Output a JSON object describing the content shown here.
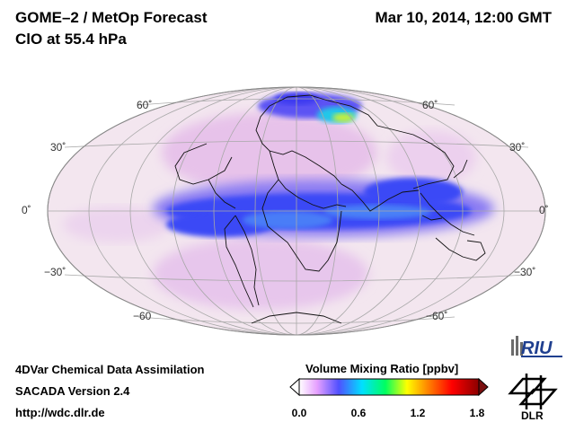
{
  "header": {
    "title": "GOME–2 / MetOp Forecast",
    "species": "ClO at 55.4 hPa",
    "datetime": "Mar 10, 2014, 12:00 GMT"
  },
  "map": {
    "projection": "Mollweide",
    "lat_labels_left": [
      "60˚",
      "30˚",
      "0˚",
      "−30˚",
      "−60"
    ],
    "lat_labels_right": [
      "60˚",
      "30˚",
      "0˚",
      "−30˚",
      "−60˚"
    ]
  },
  "footer": {
    "line1": "4DVar Chemical Data Assimilation",
    "line2": "SACADA Version 2.4",
    "line3": "http://wdc.dlr.de"
  },
  "colorbar": {
    "title": "Volume Mixing Ratio [ppbv]",
    "ticks": [
      "0.0",
      "0.6",
      "1.2",
      "1.8"
    ],
    "min": 0.0,
    "max": 1.8,
    "colors": [
      "#ffffff",
      "#e6a0ff",
      "#5050ff",
      "#00e0ff",
      "#00ff60",
      "#ffff00",
      "#ff8000",
      "#ff0000",
      "#8b0000"
    ]
  },
  "logos": {
    "riu": "RIU",
    "dlr": "DLR"
  }
}
